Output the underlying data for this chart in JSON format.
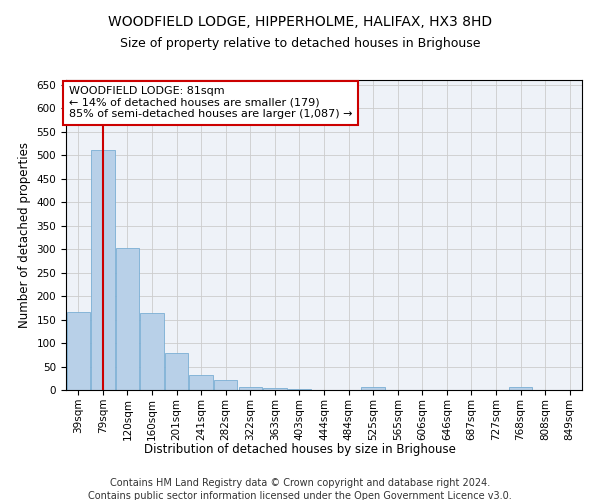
{
  "title1": "WOODFIELD LODGE, HIPPERHOLME, HALIFAX, HX3 8HD",
  "title2": "Size of property relative to detached houses in Brighouse",
  "xlabel": "Distribution of detached houses by size in Brighouse",
  "ylabel": "Number of detached properties",
  "categories": [
    "39sqm",
    "79sqm",
    "120sqm",
    "160sqm",
    "201sqm",
    "241sqm",
    "282sqm",
    "322sqm",
    "363sqm",
    "403sqm",
    "444sqm",
    "484sqm",
    "525sqm",
    "565sqm",
    "606sqm",
    "646sqm",
    "687sqm",
    "727sqm",
    "768sqm",
    "808sqm",
    "849sqm"
  ],
  "values": [
    167,
    510,
    303,
    165,
    78,
    33,
    22,
    7,
    5,
    2,
    1,
    1,
    7,
    0,
    0,
    0,
    0,
    0,
    7,
    0,
    0
  ],
  "bar_color": "#b8d0e8",
  "bar_edge_color": "#7aaed4",
  "vline_x": 1.0,
  "vline_color": "#cc0000",
  "annotation_text": "WOODFIELD LODGE: 81sqm\n← 14% of detached houses are smaller (179)\n85% of semi-detached houses are larger (1,087) →",
  "annotation_box_color": "#ffffff",
  "annotation_box_edge_color": "#cc0000",
  "ylim": [
    0,
    660
  ],
  "yticks": [
    0,
    50,
    100,
    150,
    200,
    250,
    300,
    350,
    400,
    450,
    500,
    550,
    600,
    650
  ],
  "grid_color": "#cccccc",
  "background_color": "#eef2f8",
  "footer1": "Contains HM Land Registry data © Crown copyright and database right 2024.",
  "footer2": "Contains public sector information licensed under the Open Government Licence v3.0.",
  "title1_fontsize": 10,
  "title2_fontsize": 9,
  "axis_label_fontsize": 8.5,
  "tick_fontsize": 7.5,
  "annotation_fontsize": 8,
  "footer_fontsize": 7
}
